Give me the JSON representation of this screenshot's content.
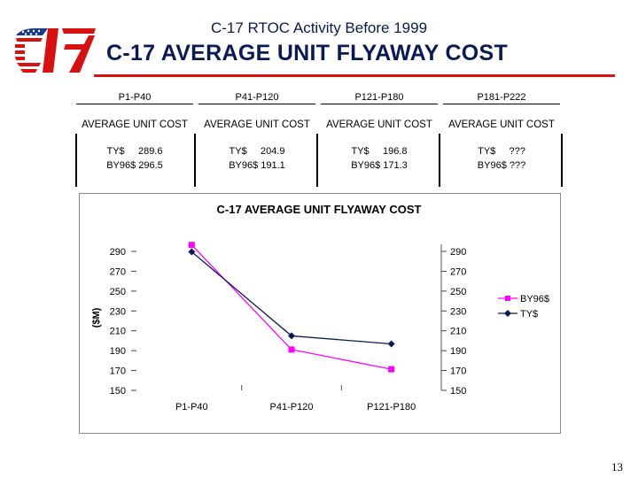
{
  "slide": {
    "top_title": "C-17 RTOC Activity Before 1999",
    "main_title": "C-17 AVERAGE UNIT FLYAWAY COST",
    "page_number": "13"
  },
  "logo": {
    "name": "c17-logo",
    "colors": [
      "#d81010",
      "#1a3a8c",
      "#ffffff"
    ]
  },
  "cost_table": [
    {
      "phase": "P1-P40",
      "label": "AVERAGE UNIT COST",
      "ty": "TY$     289.6",
      "by": "BY96$ 296.5"
    },
    {
      "phase": "P41-P120",
      "label": "AVERAGE UNIT COST",
      "ty": "TY$     204.9",
      "by": "BY96$ 191.1"
    },
    {
      "phase": "P121-P180",
      "label": "AVERAGE UNIT COST",
      "ty": "TY$     196.8",
      "by": "BY96$ 171.3"
    },
    {
      "phase": "P181-P222",
      "label": "AVERAGE UNIT COST",
      "ty": "TY$     ???",
      "by": "BY96$ ???"
    }
  ],
  "chart_data": {
    "type": "line",
    "title": "C-17 AVERAGE UNIT FLYAWAY COST",
    "ylabel": "($M)",
    "xlabel": "",
    "categories": [
      "P1-P40",
      "P41-P120",
      "P121-P180"
    ],
    "series": [
      {
        "name": "BY96$",
        "values": [
          296.5,
          191.1,
          171.3
        ],
        "color": "#ff00ff",
        "marker": "square"
      },
      {
        "name": "TY$",
        "values": [
          289.6,
          204.9,
          196.8
        ],
        "color": "#0a1a55",
        "marker": "diamond"
      }
    ],
    "ylim": [
      150,
      290
    ],
    "yticks": [
      290,
      270,
      250,
      230,
      210,
      190,
      170,
      150
    ],
    "secondary_axis": true,
    "grid": false,
    "legend": "right"
  }
}
